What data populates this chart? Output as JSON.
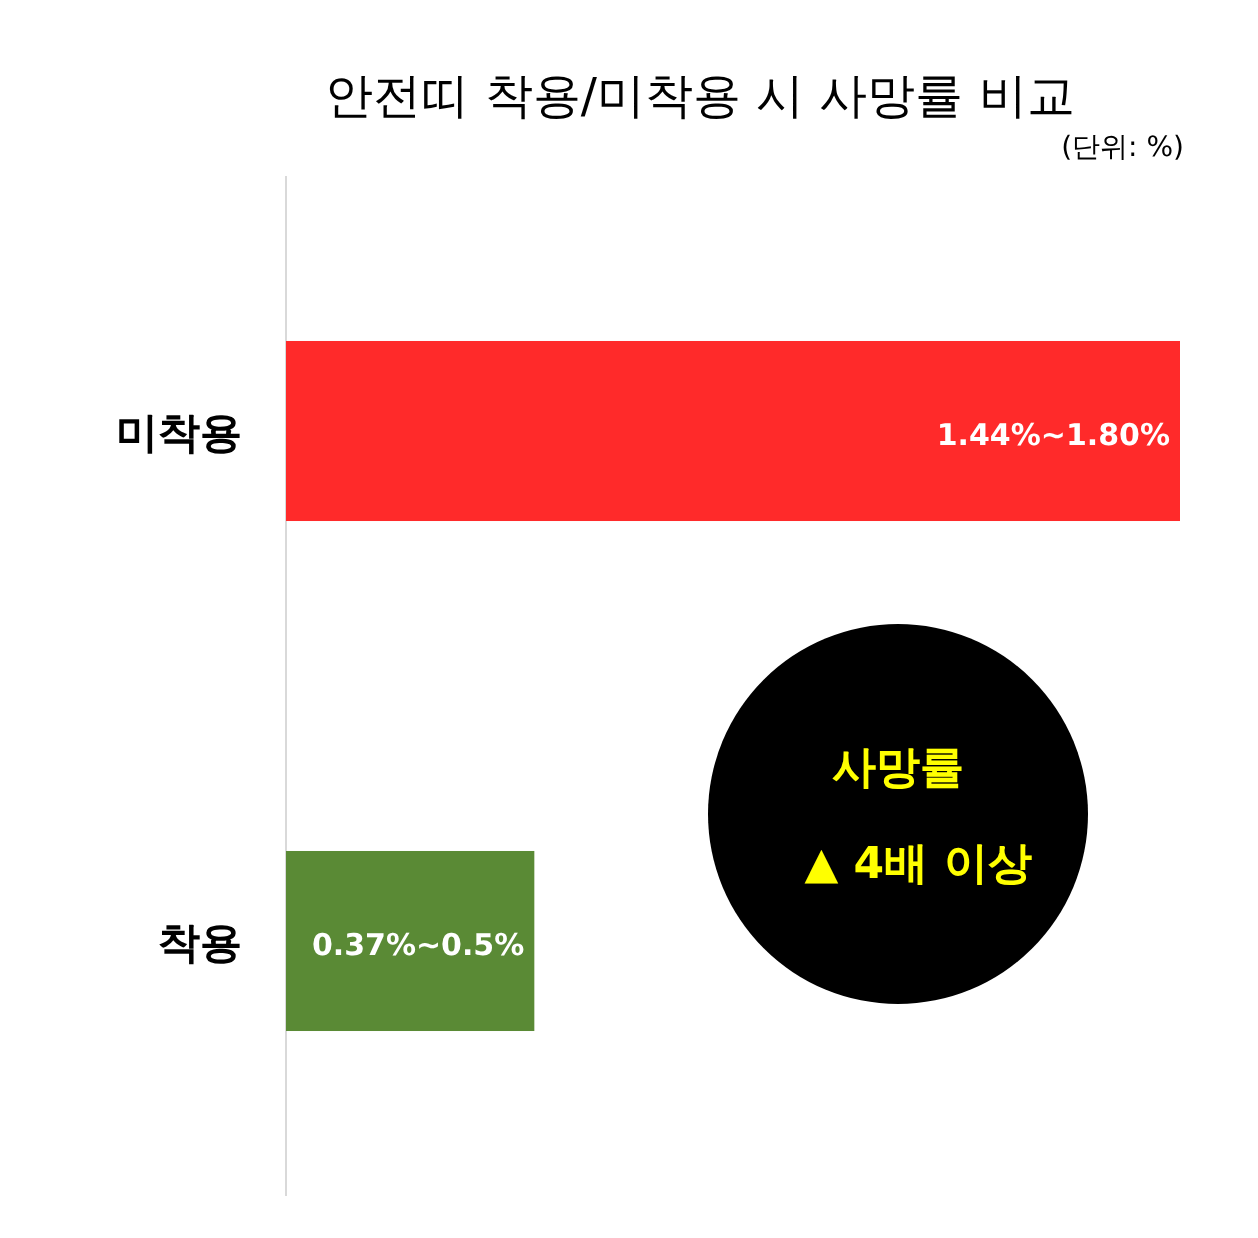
{
  "chart_data": {
    "type": "bar",
    "orientation": "horizontal",
    "title": "안전띠 착용/미착용 시 사망률 비교",
    "subtitle": "(단위: %)",
    "categories": [
      "미착용",
      "착용"
    ],
    "values": [
      1.8,
      0.5
    ],
    "colors": [
      "#ff2a2a",
      "#5a8a35"
    ],
    "value_labels": [
      "1.44%~1.80%",
      "0.37%~0.5%"
    ],
    "annotations": [
      "사망률",
      "▲ 4배 이상"
    ]
  }
}
